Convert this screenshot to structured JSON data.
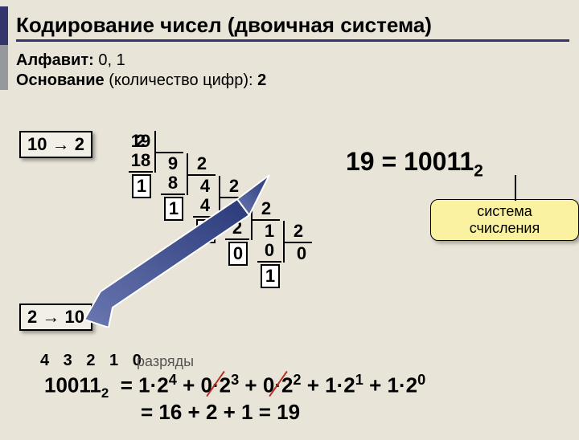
{
  "title": "Кодирование чисел (двоичная система)",
  "alphabet_label": "Алфавит:",
  "alphabet_val": "0, 1",
  "base_label": "Основание",
  "base_paren": "(количество цифр):",
  "base_val": "2",
  "conv_10_2": "10 → 2",
  "conv_2_10": "2 → 10",
  "division": {
    "steps": [
      {
        "n": "19",
        "d": "2",
        "m": "18",
        "q": "9",
        "r": "1"
      },
      {
        "n": "9",
        "d": "2",
        "m": "8",
        "q": "4",
        "r": "1"
      },
      {
        "n": "4",
        "d": "2",
        "m": "4",
        "q": "2",
        "r": "0"
      },
      {
        "n": "2",
        "d": "2",
        "m": "2",
        "q": "1",
        "r": "0"
      },
      {
        "n": "1",
        "d": "2",
        "m": "0",
        "q": "0",
        "r": "1"
      }
    ]
  },
  "result_lhs": "19 = 10011",
  "result_sub": "2",
  "callout_text": "система счисления",
  "razryady": "4 3 2 1 0",
  "razryady_label": "разряды",
  "expansion_line1_parts": {
    "lhs": "10011",
    "lhs_sub": "2",
    "terms": [
      {
        "coef": "1",
        "base": "2",
        "exp": "4",
        "strike": false
      },
      {
        "coef": "0",
        "base": "2",
        "exp": "3",
        "strike": true
      },
      {
        "coef": "0",
        "base": "2",
        "exp": "2",
        "strike": true
      },
      {
        "coef": "1",
        "base": "2",
        "exp": "1",
        "strike": false
      },
      {
        "coef": "1",
        "base": "2",
        "exp": "0",
        "strike": false
      }
    ]
  },
  "expansion_line2": "= 16 + 2 + 1 = 19",
  "colors": {
    "bg": "#e8e4d8",
    "title_accent": "#34356c",
    "body_accent": "#97989e",
    "callout_bg": "#faf2a0",
    "arrow_fill": "#2a3a7a",
    "strike": "#b83020"
  }
}
